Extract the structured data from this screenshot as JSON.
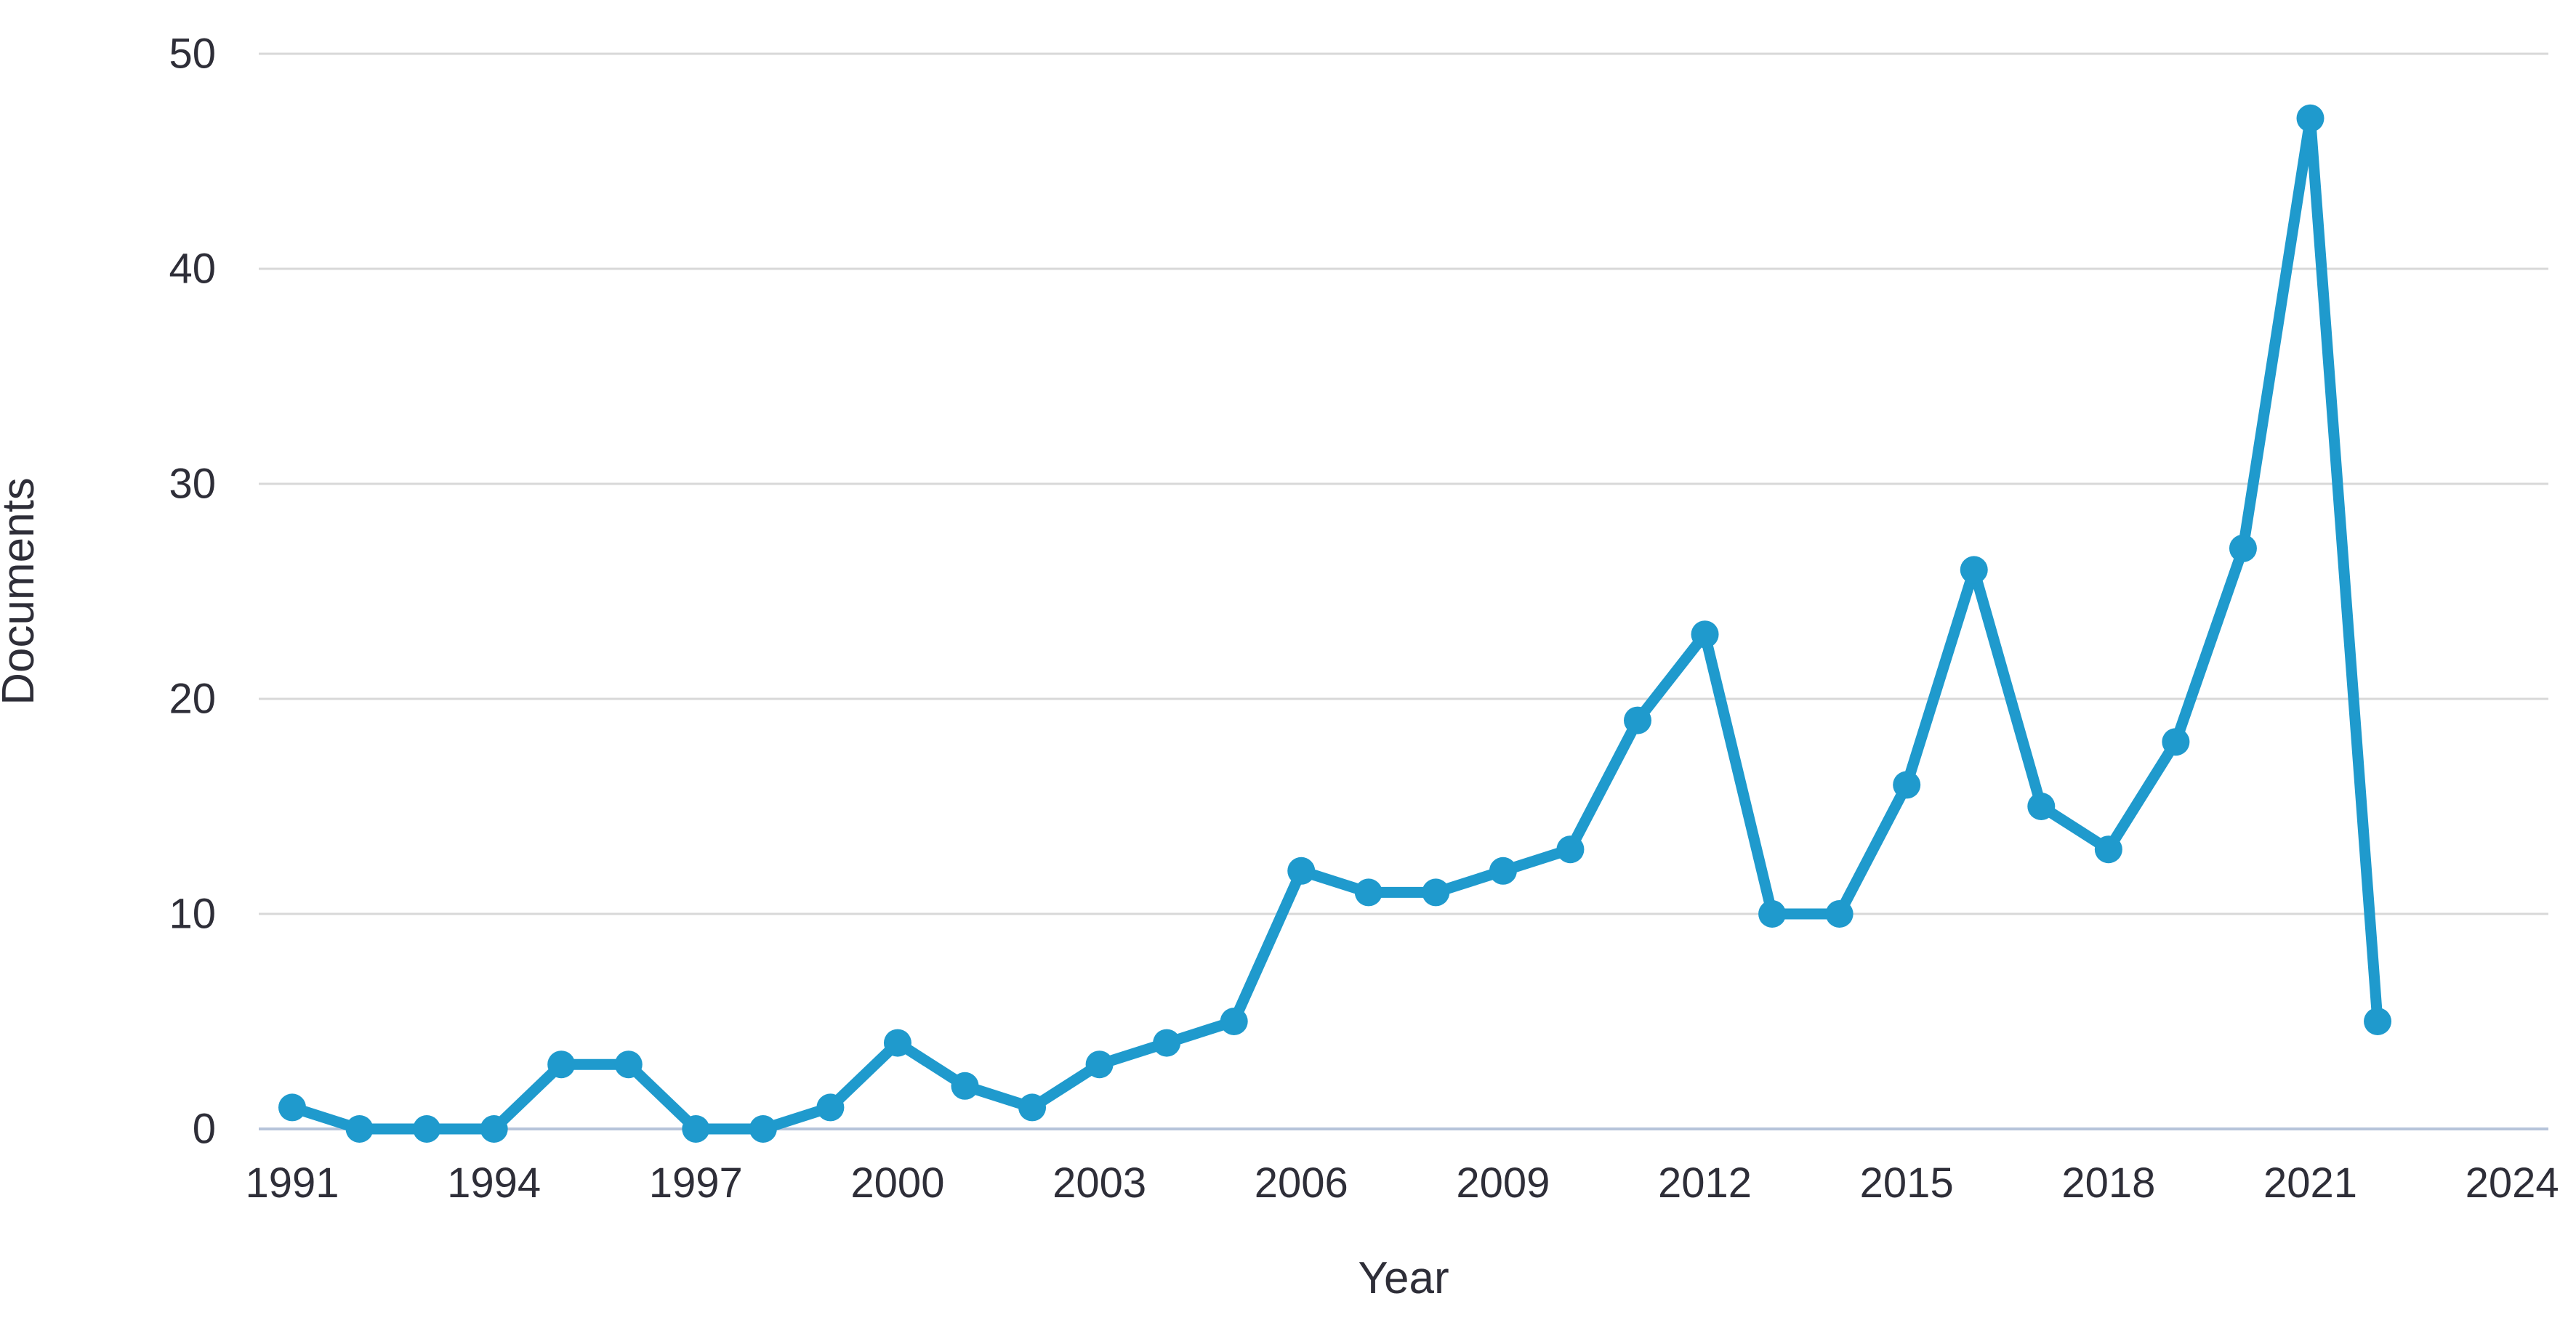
{
  "colors": {
    "line": "#1f9acd",
    "marker": "#1f9acd",
    "gridline": "#d8d8d8",
    "axis_line": "#b6c4da",
    "text": "#2e2e38",
    "background": "#ffffff"
  },
  "chart_data": {
    "type": "line",
    "title": "",
    "xlabel": "Year",
    "ylabel": "Documents",
    "x": [
      1991,
      1992,
      1993,
      1994,
      1995,
      1996,
      1997,
      1998,
      1999,
      2000,
      2001,
      2002,
      2003,
      2004,
      2005,
      2006,
      2007,
      2008,
      2009,
      2010,
      2011,
      2012,
      2013,
      2014,
      2015,
      2016,
      2017,
      2018,
      2019,
      2020,
      2021,
      2022
    ],
    "values": [
      1,
      0,
      0,
      0,
      3,
      3,
      0,
      0,
      1,
      4,
      2,
      1,
      3,
      4,
      5,
      12,
      11,
      11,
      12,
      13,
      19,
      23,
      10,
      10,
      16,
      26,
      15,
      13,
      18,
      27,
      47,
      5
    ],
    "x_ticks": [
      1991,
      1994,
      1997,
      2000,
      2003,
      2006,
      2009,
      2012,
      2015,
      2018,
      2021,
      2024
    ],
    "y_ticks": [
      0,
      10,
      20,
      30,
      40,
      50
    ],
    "xlim": [
      1991,
      2024
    ],
    "ylim": [
      0,
      50
    ],
    "grid": "horizontal",
    "legend": "none",
    "marker": "circle"
  }
}
